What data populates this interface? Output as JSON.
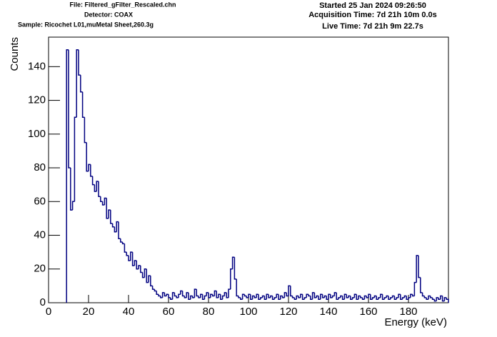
{
  "chart_data": {
    "type": "histogram",
    "header_left": [
      "File: Filtered_gFilter_Rescaled.chn",
      "Detector: COAX",
      "Sample: Ricochet L01,muMetal Sheet,260.3g"
    ],
    "header_right": [
      "Started 25 Jan 2024 09:26:50",
      "Acquisition Time: 7d 21h 10m 0.0s",
      "Live Time: 7d 21h 9m 22.7s"
    ],
    "x_label": "Energy (keV)",
    "y_label": "Counts",
    "color": "#000080",
    "xlim": [
      0,
      200
    ],
    "ylim": [
      0,
      157.5
    ],
    "xticks": [
      0,
      20,
      40,
      60,
      80,
      100,
      120,
      140,
      160,
      180
    ],
    "yticks": [
      0,
      20,
      40,
      60,
      80,
      100,
      120,
      140
    ],
    "bins": [
      9,
      10,
      11,
      12,
      13,
      14,
      15,
      16,
      17,
      18,
      19,
      20,
      21,
      22,
      23,
      24,
      25,
      26,
      27,
      28,
      29,
      30,
      31,
      32,
      33,
      34,
      35,
      36,
      37,
      38,
      39,
      40,
      41,
      42,
      43,
      44,
      45,
      46,
      47,
      48,
      49,
      50,
      51,
      52,
      53,
      54,
      55,
      56,
      57,
      58,
      59,
      60,
      61,
      62,
      63,
      64,
      65,
      66,
      67,
      68,
      69,
      70,
      71,
      72,
      73,
      74,
      75,
      76,
      77,
      78,
      79,
      80,
      81,
      82,
      83,
      84,
      85,
      86,
      87,
      88,
      89,
      90,
      91,
      92,
      93,
      94,
      95,
      96,
      97,
      98,
      99,
      100,
      101,
      102,
      103,
      104,
      105,
      106,
      107,
      108,
      109,
      110,
      111,
      112,
      113,
      114,
      115,
      116,
      117,
      118,
      119,
      120,
      121,
      122,
      123,
      124,
      125,
      126,
      127,
      128,
      129,
      130,
      131,
      132,
      133,
      134,
      135,
      136,
      137,
      138,
      139,
      140,
      141,
      142,
      143,
      144,
      145,
      146,
      147,
      148,
      149,
      150,
      151,
      152,
      153,
      154,
      155,
      156,
      157,
      158,
      159,
      160,
      161,
      162,
      163,
      164,
      165,
      166,
      167,
      168,
      169,
      170,
      171,
      172,
      173,
      174,
      175,
      176,
      177,
      178,
      179,
      180,
      181,
      182,
      183,
      184,
      185,
      186,
      187,
      188,
      189,
      190,
      191,
      192,
      193,
      194,
      195,
      196,
      197,
      198,
      199,
      200
    ],
    "values": [
      150,
      80,
      55,
      60,
      110,
      150,
      135,
      125,
      110,
      95,
      78,
      82,
      75,
      70,
      66,
      72,
      63,
      60,
      58,
      62,
      50,
      55,
      47,
      45,
      42,
      48,
      38,
      36,
      35,
      30,
      28,
      25,
      30,
      22,
      25,
      20,
      22,
      18,
      15,
      20,
      12,
      16,
      10,
      8,
      7,
      5,
      4,
      3,
      6,
      4,
      5,
      3,
      2,
      6,
      4,
      3,
      5,
      7,
      4,
      3,
      6,
      2,
      4,
      3,
      8,
      4,
      3,
      5,
      2,
      4,
      6,
      3,
      5,
      4,
      7,
      3,
      5,
      2,
      4,
      6,
      3,
      8,
      20,
      27,
      14,
      4,
      3,
      2,
      5,
      4,
      3,
      5,
      2,
      4,
      3,
      5,
      2,
      3,
      4,
      2,
      5,
      3,
      4,
      2,
      3,
      5,
      2,
      4,
      3,
      6,
      4,
      10,
      4,
      3,
      2,
      4,
      3,
      5,
      2,
      3,
      5,
      4,
      2,
      6,
      3,
      4,
      2,
      5,
      3,
      4,
      2,
      5,
      3,
      4,
      6,
      2,
      3,
      4,
      2,
      5,
      3,
      4,
      2,
      3,
      5,
      2,
      4,
      3,
      2,
      4,
      3,
      5,
      2,
      3,
      4,
      2,
      3,
      5,
      2,
      3,
      4,
      2,
      3,
      4,
      2,
      3,
      5,
      2,
      3,
      4,
      2,
      3,
      5,
      4,
      12,
      28,
      15,
      6,
      4,
      3,
      2,
      4,
      3,
      2,
      1,
      3,
      2,
      4,
      1,
      3,
      2
    ]
  }
}
